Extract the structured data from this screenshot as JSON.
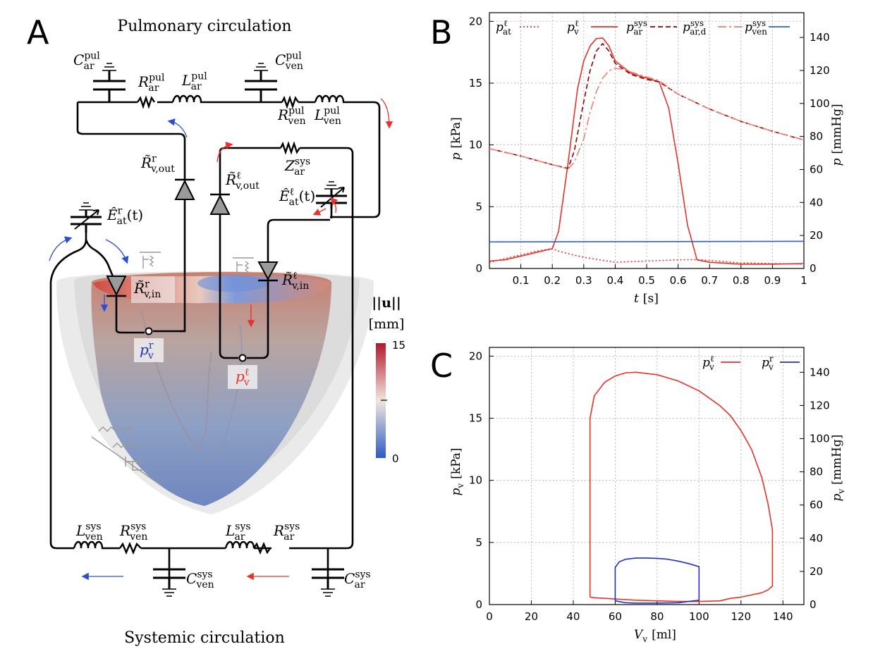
{
  "panels": {
    "a": {
      "letter": "A",
      "title_top": "Pulmonary circulation",
      "title_bottom": "Systemic circulation",
      "elements": {
        "c_ar_pul": {
          "base": "C",
          "sup": "pul",
          "sub": "ar"
        },
        "r_ar_pul": {
          "base": "R",
          "sup": "pul",
          "sub": "ar"
        },
        "l_ar_pul": {
          "base": "L",
          "sup": "pul",
          "sub": "ar"
        },
        "c_ven_pul": {
          "base": "C",
          "sup": "pul",
          "sub": "ven"
        },
        "r_ven_pul": {
          "base": "R",
          "sup": "pul",
          "sub": "ven"
        },
        "l_ven_pul": {
          "base": "L",
          "sup": "pul",
          "sub": "ven"
        },
        "r_vout_r": {
          "base": "R̃",
          "sup": "r",
          "sub": "v,out"
        },
        "r_vout_l": {
          "base": "R̃",
          "sup": "ℓ",
          "sub": "v,out"
        },
        "z_ar_sys": {
          "base": "Z",
          "sup": "sys",
          "sub": "ar"
        },
        "e_at_l": {
          "base": "Ê",
          "sup": "ℓ",
          "sub": "at",
          "suffix": "(t)"
        },
        "e_at_r": {
          "base": "Ê",
          "sup": "r",
          "sub": "at",
          "suffix": "(t)"
        },
        "r_vin_r": {
          "base": "R̃",
          "sup": "r",
          "sub": "v,in"
        },
        "r_vin_l": {
          "base": "R̃",
          "sup": "ℓ",
          "sub": "v,in"
        },
        "p_v_r": {
          "base": "p",
          "sup": "r",
          "sub": "v"
        },
        "p_v_l": {
          "base": "p",
          "sup": "ℓ",
          "sub": "v"
        },
        "l_ven_sys": {
          "base": "L",
          "sup": "sys",
          "sub": "ven"
        },
        "r_ven_sys": {
          "base": "R",
          "sup": "sys",
          "sub": "ven"
        },
        "l_ar_sys": {
          "base": "L",
          "sup": "sys",
          "sub": "ar"
        },
        "r_ar_sys": {
          "base": "R",
          "sup": "sys",
          "sub": "ar"
        },
        "c_ven_sys": {
          "base": "C",
          "sup": "sys",
          "sub": "ven"
        },
        "c_ar_sys": {
          "base": "C",
          "sup": "sys",
          "sub": "ar"
        }
      },
      "colorbar": {
        "label_line1": "||u||",
        "label_line2": "[mm]",
        "max": "15",
        "min": "0",
        "color_high": "#b2182b",
        "color_mid": "#f2e6df",
        "color_low": "#2c5cc5"
      }
    },
    "b": {
      "letter": "B",
      "xlabel": {
        "base": "t",
        "unit": "[s]"
      },
      "ylabel_left": {
        "base": "p",
        "unit": "[kPa]"
      },
      "ylabel_right": {
        "base": "p",
        "unit": "[mmHg]"
      },
      "legend": [
        {
          "base": "p",
          "sup": "ℓ",
          "sub": "at",
          "color": "#e8312a",
          "dash": "2,3"
        },
        {
          "base": "p",
          "sup": "ℓ",
          "sub": "v",
          "color": "#e8312a",
          "dash": ""
        },
        {
          "base": "p",
          "sup": "sys",
          "sub": "ar",
          "color": "#8b0000",
          "dash": "7,4"
        },
        {
          "base": "p",
          "sup": "sys",
          "sub": "ar,d",
          "color": "#f08070",
          "dash": "12,4,3,4"
        },
        {
          "base": "p",
          "sup": "sys",
          "sub": "ven",
          "color": "#3060d0",
          "dash": ""
        }
      ],
      "x_ticks": [
        "0.1",
        "0.2",
        "0.3",
        "0.4",
        "0.5",
        "0.6",
        "0.7",
        "0.8",
        "0.9",
        "1"
      ],
      "y_ticks_left": [
        "0",
        "5",
        "10",
        "15",
        "20"
      ],
      "y_ticks_right": [
        "0",
        "20",
        "40",
        "60",
        "80",
        "100",
        "120",
        "140"
      ]
    },
    "c": {
      "letter": "C",
      "xlabel": {
        "base": "V",
        "sub": "v",
        "unit": "[ml]"
      },
      "ylabel_left": {
        "base": "p",
        "sub": "v",
        "unit": "[kPa]"
      },
      "ylabel_right": {
        "base": "p",
        "sub": "v",
        "unit": "[mmHg]"
      },
      "legend": [
        {
          "base": "p",
          "sup": "ℓ",
          "sub": "v",
          "color": "#e8312a"
        },
        {
          "base": "p",
          "sup": "r",
          "sub": "v",
          "color": "#2030c0"
        }
      ],
      "x_ticks": [
        "0",
        "20",
        "40",
        "60",
        "80",
        "100",
        "120",
        "140"
      ],
      "y_ticks_left": [
        "0",
        "5",
        "10",
        "15",
        "20"
      ],
      "y_ticks_right": [
        "0",
        "20",
        "40",
        "60",
        "80",
        "100",
        "120",
        "140"
      ]
    }
  },
  "chart_data": [
    {
      "type": "line",
      "panel": "B",
      "xlim": [
        0,
        1
      ],
      "ylim": [
        0,
        20.7
      ],
      "ylim_right_mmHg": [
        0,
        155
      ],
      "grid": true,
      "legend_position": "top",
      "series": [
        {
          "name": "p_at^ℓ",
          "x": [
            0,
            0.05,
            0.1,
            0.15,
            0.2,
            0.22,
            0.25,
            0.3,
            0.35,
            0.4,
            0.45,
            0.5,
            0.55,
            0.6,
            0.65,
            0.7,
            0.8,
            0.9,
            1.0
          ],
          "y": [
            0.5,
            0.8,
            1.1,
            1.4,
            1.6,
            1.4,
            1.2,
            0.9,
            0.7,
            0.5,
            0.55,
            0.6,
            0.65,
            0.7,
            0.72,
            0.65,
            0.45,
            0.4,
            0.35
          ]
        },
        {
          "name": "p_v^ℓ",
          "x": [
            0,
            0.05,
            0.1,
            0.15,
            0.2,
            0.22,
            0.25,
            0.28,
            0.3,
            0.32,
            0.34,
            0.36,
            0.38,
            0.4,
            0.45,
            0.5,
            0.54,
            0.57,
            0.6,
            0.63,
            0.66,
            0.7,
            0.8,
            0.9,
            1.0
          ],
          "y": [
            0.6,
            0.7,
            1.0,
            1.3,
            1.6,
            3.0,
            8.5,
            14.5,
            16.8,
            18.0,
            18.6,
            18.65,
            18.0,
            16.8,
            15.8,
            15.4,
            15.1,
            13.0,
            8.5,
            3.5,
            0.7,
            0.5,
            0.35,
            0.35,
            0.4
          ]
        },
        {
          "name": "p_ar^sys",
          "x": [
            0,
            0.05,
            0.1,
            0.15,
            0.2,
            0.25,
            0.27,
            0.3,
            0.32,
            0.34,
            0.36,
            0.38,
            0.4,
            0.45,
            0.5,
            0.54,
            0.6,
            0.7,
            0.8,
            0.9,
            1.0
          ],
          "y": [
            9.7,
            9.4,
            9.1,
            8.75,
            8.4,
            8.1,
            9.5,
            13.5,
            16.0,
            17.6,
            18.2,
            17.6,
            16.6,
            15.7,
            15.3,
            15.1,
            14.1,
            12.9,
            11.9,
            11.1,
            10.4
          ]
        },
        {
          "name": "p_ar,d^sys",
          "x": [
            0,
            0.05,
            0.1,
            0.15,
            0.2,
            0.25,
            0.27,
            0.3,
            0.32,
            0.34,
            0.36,
            0.38,
            0.4,
            0.43,
            0.45,
            0.5,
            0.54,
            0.6,
            0.7,
            0.8,
            0.9,
            1.0
          ],
          "y": [
            9.7,
            9.4,
            9.1,
            8.75,
            8.4,
            8.05,
            8.6,
            10.5,
            12.6,
            14.3,
            15.4,
            16.0,
            16.2,
            16.1,
            15.9,
            15.5,
            15.2,
            14.1,
            12.9,
            11.9,
            11.1,
            10.4
          ]
        },
        {
          "name": "p_ven^sys",
          "x": [
            0,
            1.0
          ],
          "y": [
            2.15,
            2.2
          ]
        }
      ]
    },
    {
      "type": "line",
      "panel": "C",
      "xlim": [
        0,
        150
      ],
      "ylim": [
        0,
        20.7
      ],
      "ylim_right_mmHg": [
        0,
        155
      ],
      "grid": true,
      "legend_position": "top-right",
      "series": [
        {
          "name": "p_v^ℓ",
          "x": [
            48,
            48,
            50,
            55,
            60,
            65,
            70,
            80,
            90,
            100,
            110,
            115,
            120,
            125,
            130,
            133,
            135,
            135,
            133,
            130,
            120,
            115,
            110,
            100,
            90,
            80,
            70,
            60,
            50,
            48
          ],
          "y": [
            0.6,
            15.0,
            16.8,
            17.9,
            18.4,
            18.65,
            18.7,
            18.5,
            18.0,
            17.2,
            16.0,
            15.2,
            14.0,
            12.5,
            10.2,
            8.0,
            6.0,
            1.5,
            1.2,
            0.95,
            0.6,
            0.5,
            0.3,
            0.25,
            0.25,
            0.3,
            0.35,
            0.45,
            0.55,
            0.6
          ]
        },
        {
          "name": "p_v^r",
          "x": [
            60,
            60,
            62,
            65,
            70,
            75,
            80,
            85,
            90,
            95,
            100,
            100,
            95,
            90,
            80,
            70,
            65,
            60
          ],
          "y": [
            0.3,
            3.0,
            3.45,
            3.65,
            3.75,
            3.75,
            3.72,
            3.65,
            3.5,
            3.3,
            3.05,
            0.35,
            0.25,
            0.15,
            0.12,
            0.12,
            0.15,
            0.3
          ]
        }
      ]
    }
  ]
}
